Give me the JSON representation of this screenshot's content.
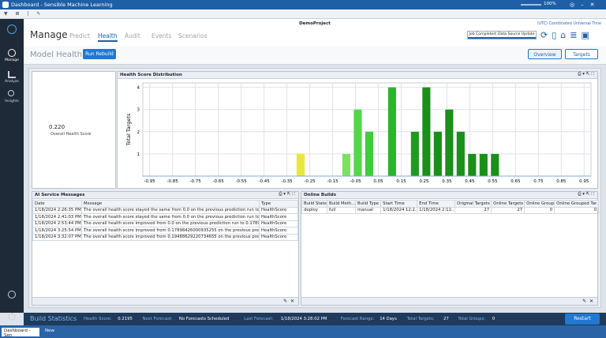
{
  "window": {
    "title": "Dashboard - Sensible Machine Learning",
    "zoom": "100%"
  },
  "sidebar": [
    "Manage",
    "Analyze",
    "Insights"
  ],
  "header": {
    "project": "DemoProject",
    "timezone": "(UTC) Coordinated Universal Time",
    "job_status": "Job Completed: Data Source Update",
    "tabs": [
      "Manage",
      "Predict",
      "Health",
      "Audit",
      "Events",
      "Scenarios"
    ]
  },
  "model_health": {
    "label": "Model Health:",
    "rebuild_button": "Run Rebuild",
    "overview_button": "Overview",
    "targets_button": "Targets"
  },
  "score_panel": {
    "value": "0.220",
    "label": "Overall Health Score"
  },
  "chart_data": {
    "type": "histogram",
    "title": "Health Score Distribution",
    "y_label": "Total Targets",
    "bins": [
      -0.315,
      -0.265,
      -0.215,
      -0.165,
      -0.115,
      -0.065,
      -0.015,
      0.035,
      0.085,
      0.135,
      0.185,
      0.235,
      0.285,
      0.335,
      0.385,
      0.435,
      0.485,
      0.535,
      0.585
    ],
    "values": [
      1,
      0,
      0,
      0,
      1,
      3,
      2,
      0,
      4,
      0,
      2,
      4,
      2,
      3,
      2,
      1,
      1,
      1
    ],
    "colors": [
      "#e8e838",
      "#e8e838",
      "#e8e838",
      "#a8e050",
      "#7ce060",
      "#55d64a",
      "#3fcc3a",
      "#2fbf2f",
      "#2ab52a",
      "#24a824",
      "#1f9a1f",
      "#1a901a",
      "#1a901a",
      "#1a901a",
      "#1a901a",
      "#1a901a",
      "#1a901a",
      "#1a901a"
    ],
    "xlim": [
      -0.98,
      0.98
    ],
    "ylim": [
      0,
      4.2
    ],
    "xticks": [
      -0.95,
      -0.85,
      -0.75,
      -0.65,
      -0.55,
      -0.45,
      -0.35,
      -0.25,
      -0.15,
      -0.05,
      0.05,
      0.15,
      0.25,
      0.35,
      0.45,
      0.55,
      0.65,
      0.75,
      0.85,
      0.95
    ],
    "yticks": [
      1,
      2,
      3,
      4
    ],
    "grid": true,
    "grid_color": "#dfe3e8"
  },
  "messages": {
    "title": "AI Service Messages",
    "columns": [
      "Date",
      "Message",
      "Type"
    ],
    "rows": [
      [
        "1/18/2024 2:26:35 PM",
        "The overall health score stayed the same from 0.0 on the previous prediction run to 0.0...",
        "HealthScore"
      ],
      [
        "1/18/2024 2:41:03 PM",
        "The overall health score stayed the same from 0.0 on the previous prediction run to 0.0...",
        "HealthScore"
      ],
      [
        "1/18/2024 2:53:44 PM",
        "The overall health score improved from 0.0 on the previous prediction run to 0.1789842...",
        "HealthScore"
      ],
      [
        "1/18/2024 3:25:54 PM",
        "The overall health score improved from 0.17898426000935255 on the previous predicti...",
        "HealthScore"
      ],
      [
        "1/18/2024 3:32:07 PM",
        "The overall health score improved from 0.19488629220734655 on the previous predicti...",
        "HealthScore"
      ]
    ]
  },
  "builds": {
    "title": "Online Builds",
    "columns": [
      "Build State",
      "Build Meth...",
      "Build Type",
      "Start Time",
      "End Time",
      "Original Targets",
      "Online Targets",
      "Online Groups",
      "Online Grouped Tar..."
    ],
    "rows": [
      [
        "deploy",
        "full",
        "manual",
        "1/18/2024 12:2...",
        "1/18/2024 2:11:...",
        "27",
        "27",
        "0",
        "0"
      ]
    ]
  },
  "status": {
    "title": "Build Statistics",
    "items": [
      [
        "Health Score:",
        "0.2195"
      ],
      [
        "Next Forecast:",
        "No Forecasts Scheduled"
      ],
      [
        "Last Forecast:",
        "1/18/2024 3:28:02 PM"
      ],
      [
        "Forecast Range:",
        "14 Days"
      ],
      [
        "Total Targets:",
        "27"
      ],
      [
        "Total Groups:",
        "0"
      ]
    ],
    "restart": "Restart"
  },
  "taskbar": [
    "Dashboard - Sen",
    "New"
  ]
}
